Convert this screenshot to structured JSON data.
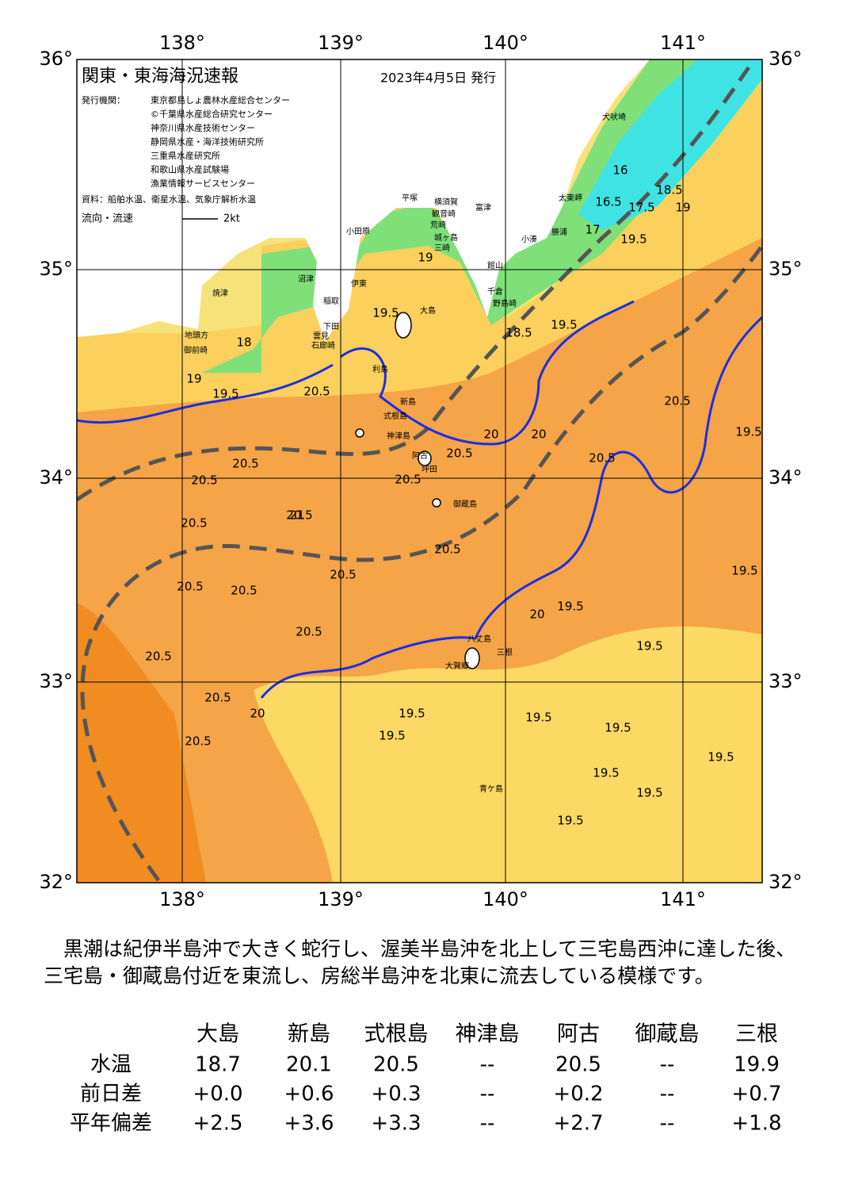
{
  "header": {
    "title": "関東・東海海況速報",
    "date": "2023年4月5日 発行",
    "publisher_label": "発行機関：",
    "publishers": [
      "東京都島しょ農林水産総合センター",
      "©千葉県水産総合研究センター",
      "神奈川県水産技術センター",
      "静岡県水産・海洋技術研究所",
      "三重県水産研究所",
      "和歌山県水産試験場",
      "漁業情報サービスセンター"
    ],
    "source": "資料：船舶水温、衛星水温、気象庁解析水温",
    "legend_label": "流向・流速",
    "legend_speed": "2kt"
  },
  "map": {
    "lon_labels": [
      "138°",
      "139°",
      "140°",
      "141°"
    ],
    "lat_labels": [
      "36°",
      "35°",
      "34°",
      "33°",
      "32°"
    ],
    "places": [
      "犬吠埼",
      "太東岬",
      "勝浦",
      "小湊",
      "野島崎",
      "千倉",
      "館山",
      "富津",
      "横須賀",
      "観音崎",
      "荒崎",
      "城ヶ島",
      "三崎",
      "平塚",
      "小田原",
      "伊東",
      "稲取",
      "下田",
      "石廊崎",
      "雲見",
      "沼津",
      "焼津",
      "地頭方",
      "御前崎",
      "大島",
      "利島",
      "新島",
      "式根島",
      "神津島",
      "阿古",
      "坪田",
      "御蔵島",
      "八丈島",
      "三根",
      "大賀郷",
      "青ケ島"
    ],
    "contours": [
      16,
      16.5,
      17,
      17.5,
      18.5,
      19,
      19.5,
      19,
      19.5,
      18.5,
      19.5,
      19,
      19.5,
      20.5,
      20.5,
      20.5,
      20.5,
      20.5,
      20.5,
      20.5,
      20.5,
      20.5,
      20.5,
      20.5,
      20.5,
      20.5,
      20.5,
      20.5,
      20.5,
      19.5,
      19.5,
      19.5,
      19.5,
      19.5,
      19.5,
      19.5,
      19.5,
      19.5,
      19.5,
      19.5,
      19.5,
      20,
      20,
      20,
      21,
      18,
      20.5,
      20
    ]
  },
  "description": "　黒潮は紀伊半島沖で大きく蛇行し、渥美半島沖を北上して三宅島西沖に達した後、三宅島・御蔵島付近を東流し、房総半島沖を北東に流去している模様です。",
  "table": {
    "columns": [
      "大島",
      "新島",
      "式根島",
      "神津島",
      "阿古",
      "御蔵島",
      "三根"
    ],
    "rows": [
      [
        "水温",
        "18.7",
        "20.1",
        "20.5",
        "--",
        "20.5",
        "--",
        "19.9"
      ],
      [
        "前日差",
        "+0.0",
        "+0.6",
        "+0.3",
        "--",
        "+0.2",
        "--",
        "+0.7"
      ],
      [
        "平年偏差",
        "+2.5",
        "+3.6",
        "+3.3",
        "--",
        "+2.7",
        "--",
        "+1.8"
      ]
    ]
  }
}
